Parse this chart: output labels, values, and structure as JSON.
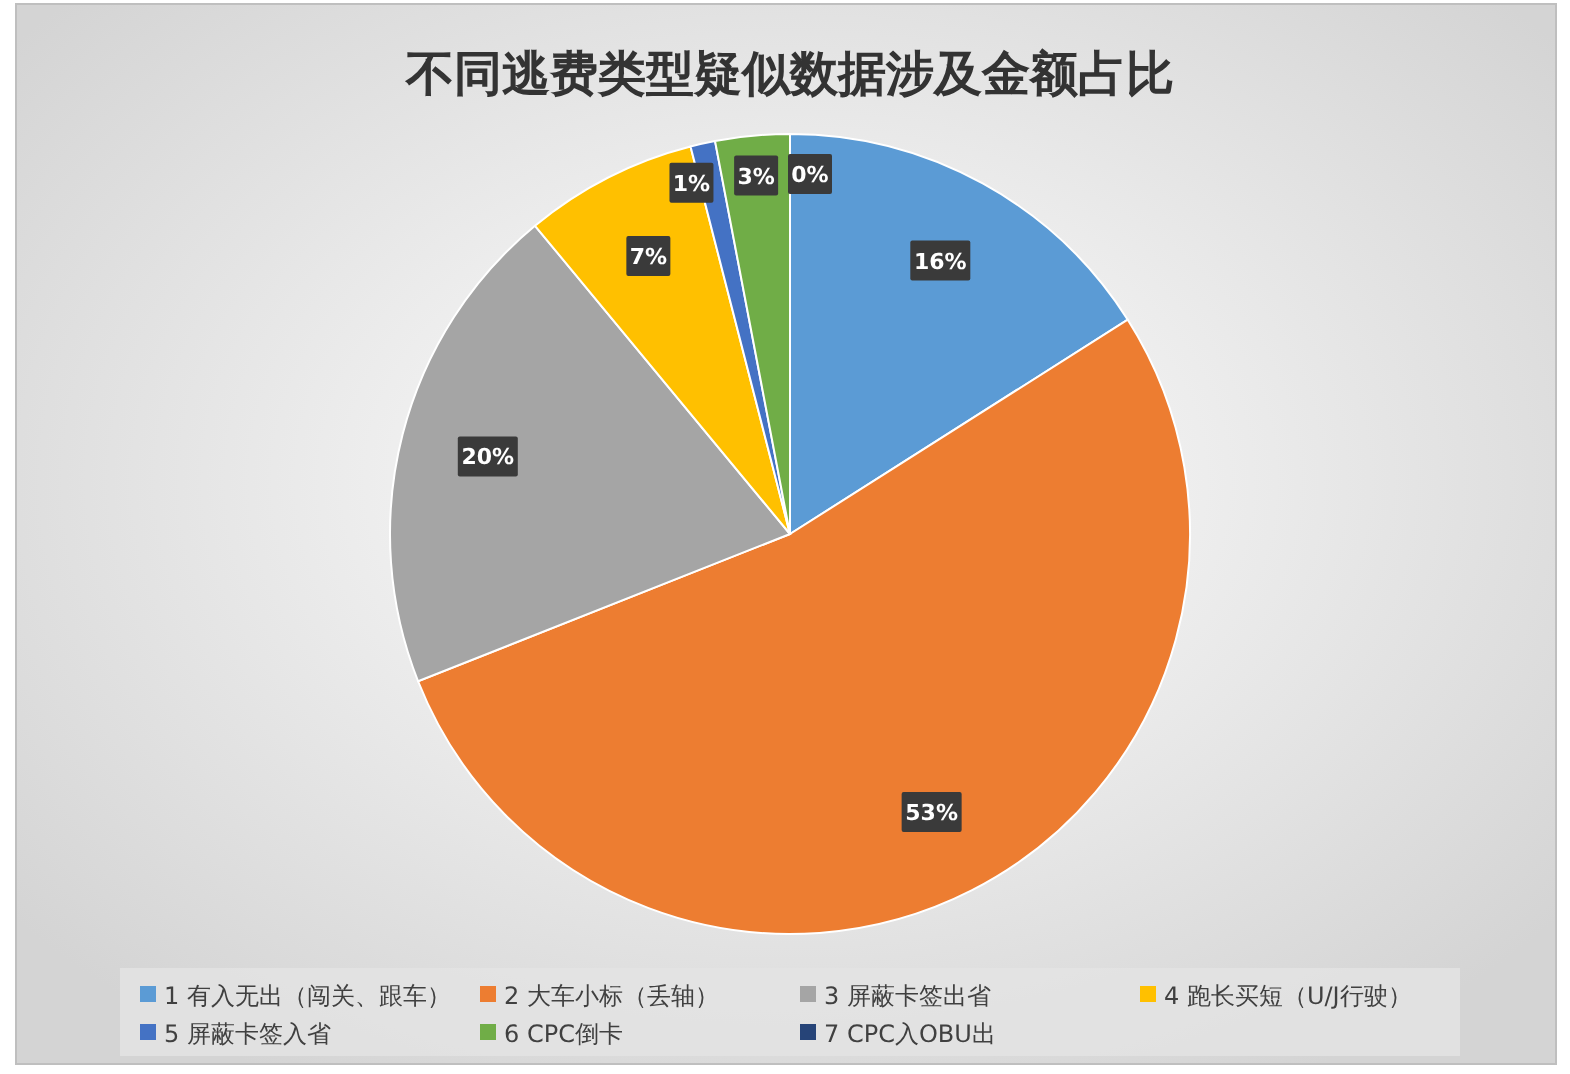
{
  "chart_data": {
    "type": "pie",
    "title": "不同逃费类型疑似数据涉及金额占比",
    "categories": [
      "1 有入无出（闯关、跟车）",
      "2 大车小标（丢轴）",
      "3 屏蔽卡签出省",
      "4 跑长买短（U/J行驶）",
      "5 屏蔽卡签入省",
      "6 CPC倒卡",
      "7 CPC入OBU出"
    ],
    "values": [
      16,
      53,
      20,
      7,
      1,
      3,
      0
    ],
    "colors": [
      "#5b9bd5",
      "#ed7d31",
      "#a5a5a5",
      "#ffc000",
      "#4472c4",
      "#70ad47",
      "#264478"
    ],
    "value_labels": [
      "16%",
      "53%",
      "20%",
      "7%",
      "1%",
      "3%",
      "0%"
    ],
    "legend": "bottom"
  }
}
